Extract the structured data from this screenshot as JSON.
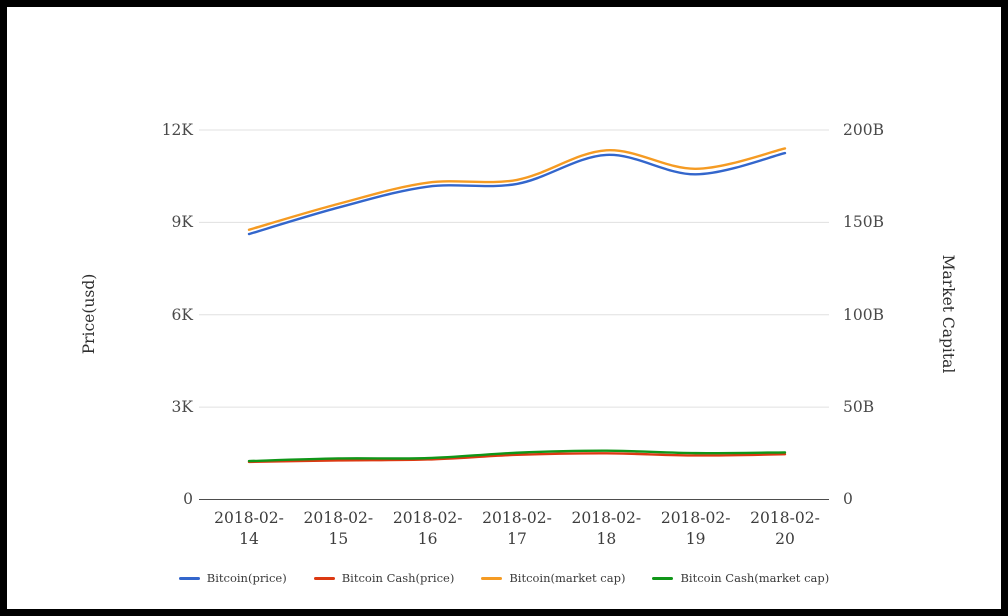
{
  "chart_data": {
    "type": "line",
    "x": [
      "2018-02-14",
      "2018-02-15",
      "2018-02-16",
      "2018-02-17",
      "2018-02-18",
      "2018-02-19",
      "2018-02-20"
    ],
    "series": [
      {
        "name": "Bitcoin(price)",
        "axis": "left",
        "color": "#3366CC",
        "values": [
          8620,
          9480,
          10160,
          10250,
          11190,
          10560,
          11250
        ]
      },
      {
        "name": "Bitcoin Cash(price)",
        "axis": "left",
        "color": "#DC3912",
        "values": [
          1220,
          1270,
          1300,
          1450,
          1500,
          1430,
          1470
        ]
      },
      {
        "name": "Bitcoin(market cap)",
        "axis": "right",
        "color": "#F59B23",
        "values": [
          146,
          160,
          171.5,
          173,
          189,
          179,
          190
        ]
      },
      {
        "name": "Bitcoin Cash(market cap)",
        "axis": "right",
        "color": "#109618",
        "values": [
          20.8,
          22.2,
          22.4,
          25.3,
          26.4,
          25.1,
          25.5
        ]
      }
    ],
    "left_axis": {
      "label": "Price(usd)",
      "min": 0,
      "max": 12000,
      "ticks": [
        "12K",
        "9K",
        "6K",
        "3K",
        "0"
      ]
    },
    "right_axis": {
      "label": "Market Capital",
      "min": 0,
      "max": 200,
      "ticks": [
        "200B",
        "150B",
        "100B",
        "50B",
        "0"
      ]
    },
    "legend_position": "bottom",
    "grid": true,
    "gridline_color": "#e0e0e0",
    "baseline_color": "#4d4d4d"
  }
}
